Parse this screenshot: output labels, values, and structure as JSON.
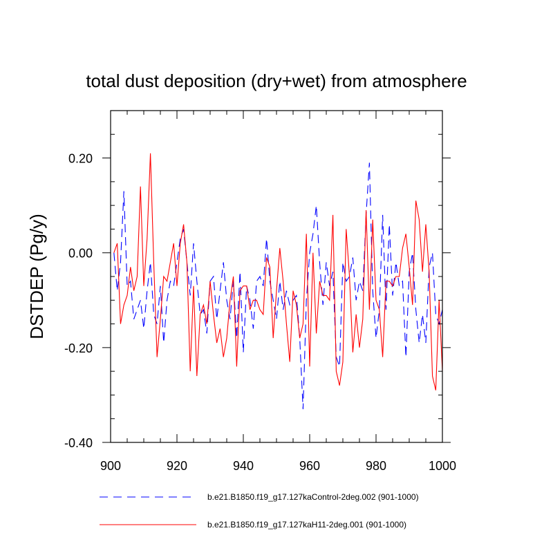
{
  "chart_data": {
    "type": "line",
    "title": "total dust deposition (dry+wet) from atmosphere",
    "xlabel": "",
    "ylabel": "DSTDEP  (Pg/y)",
    "xlim": [
      900,
      1000
    ],
    "ylim": [
      -0.4,
      0.3
    ],
    "x_ticks": [
      900,
      920,
      940,
      960,
      980,
      1000
    ],
    "x_tick_labels": [
      "900",
      "920",
      "940",
      "960",
      "980",
      "1000"
    ],
    "y_ticks": [
      -0.4,
      -0.2,
      0.0,
      0.2
    ],
    "y_tick_labels": [
      "-0.40",
      "-0.20",
      "0.00",
      "0.20"
    ],
    "grid": false,
    "legend_position": "bottom",
    "x": [
      901,
      902,
      903,
      904,
      905,
      906,
      907,
      908,
      909,
      910,
      911,
      912,
      913,
      914,
      915,
      916,
      917,
      918,
      919,
      920,
      921,
      922,
      923,
      924,
      925,
      926,
      927,
      928,
      929,
      930,
      931,
      932,
      933,
      934,
      935,
      936,
      937,
      938,
      939,
      940,
      941,
      942,
      943,
      944,
      945,
      946,
      947,
      948,
      949,
      950,
      951,
      952,
      953,
      954,
      955,
      956,
      957,
      958,
      959,
      960,
      961,
      962,
      963,
      964,
      965,
      966,
      967,
      968,
      969,
      970,
      971,
      972,
      973,
      974,
      975,
      976,
      977,
      978,
      979,
      980,
      981,
      982,
      983,
      984,
      985,
      986,
      987,
      988,
      989,
      990,
      991,
      992,
      993,
      994,
      995,
      996,
      997,
      998,
      999,
      1000
    ],
    "series": [
      {
        "name": "b.e21.B1850.f19_g17.127kaControl-2deg.002 (901-1000)",
        "color": "#0000ff",
        "style": "dashed",
        "values": [
          0.0,
          -0.08,
          -0.02,
          0.13,
          -0.07,
          -0.06,
          -0.14,
          -0.12,
          -0.1,
          -0.16,
          -0.08,
          -0.02,
          -0.13,
          -0.15,
          -0.07,
          -0.19,
          -0.1,
          -0.06,
          -0.07,
          -0.02,
          0.03,
          0.05,
          -0.02,
          -0.09,
          0.02,
          -0.06,
          -0.13,
          -0.12,
          -0.17,
          -0.06,
          -0.05,
          -0.14,
          -0.08,
          -0.02,
          -0.1,
          -0.14,
          -0.06,
          -0.18,
          -0.04,
          -0.21,
          -0.07,
          -0.1,
          -0.16,
          -0.06,
          -0.05,
          -0.07,
          0.03,
          -0.06,
          -0.1,
          -0.14,
          -0.06,
          -0.12,
          -0.08,
          -0.11,
          -0.1,
          -0.09,
          -0.18,
          -0.33,
          -0.1,
          0.0,
          0.04,
          0.1,
          -0.02,
          -0.11,
          -0.02,
          -0.07,
          -0.04,
          -0.22,
          -0.24,
          -0.02,
          -0.06,
          -0.05,
          -0.01,
          -0.1,
          -0.06,
          -0.08,
          0.08,
          0.19,
          -0.08,
          -0.18,
          -0.12,
          0.08,
          -0.12,
          0.06,
          -0.09,
          -0.02,
          -0.07,
          -0.06,
          -0.22,
          -0.04,
          0.0,
          -0.12,
          -0.19,
          -0.13,
          -0.19,
          -0.03,
          0.0,
          -0.13,
          -0.15,
          -0.12
        ]
      },
      {
        "name": "b.e21.B1850.f19_g17.127kaH11-2deg.001 (901-1000)",
        "color": "#ff0000",
        "style": "solid",
        "values": [
          0.0,
          0.02,
          -0.15,
          -0.11,
          -0.09,
          -0.03,
          -0.08,
          -0.05,
          0.14,
          -0.07,
          0.03,
          0.21,
          -0.02,
          -0.22,
          -0.14,
          -0.05,
          -0.06,
          -0.02,
          0.02,
          -0.07,
          0.02,
          0.06,
          -0.02,
          -0.25,
          -0.07,
          -0.26,
          -0.13,
          -0.11,
          -0.15,
          -0.06,
          -0.13,
          -0.19,
          -0.16,
          -0.22,
          -0.18,
          -0.1,
          -0.05,
          -0.24,
          -0.08,
          -0.07,
          -0.07,
          -0.12,
          -0.1,
          -0.1,
          -0.12,
          -0.13,
          -0.01,
          -0.03,
          -0.18,
          -0.08,
          0.01,
          -0.06,
          -0.15,
          -0.23,
          -0.08,
          -0.11,
          -0.18,
          -0.15,
          0.04,
          -0.24,
          0.0,
          -0.17,
          -0.06,
          -0.09,
          -0.09,
          -0.1,
          0.08,
          -0.25,
          -0.28,
          -0.23,
          0.05,
          -0.05,
          -0.21,
          -0.13,
          -0.2,
          -0.14,
          0.09,
          -0.12,
          0.07,
          -0.1,
          -0.12,
          -0.22,
          -0.06,
          -0.06,
          -0.07,
          -0.05,
          -0.05,
          0.01,
          0.04,
          -0.03,
          -0.11,
          0.11,
          0.07,
          -0.04,
          0.06,
          -0.04,
          -0.26,
          -0.29,
          -0.1,
          -0.25
        ]
      }
    ]
  }
}
